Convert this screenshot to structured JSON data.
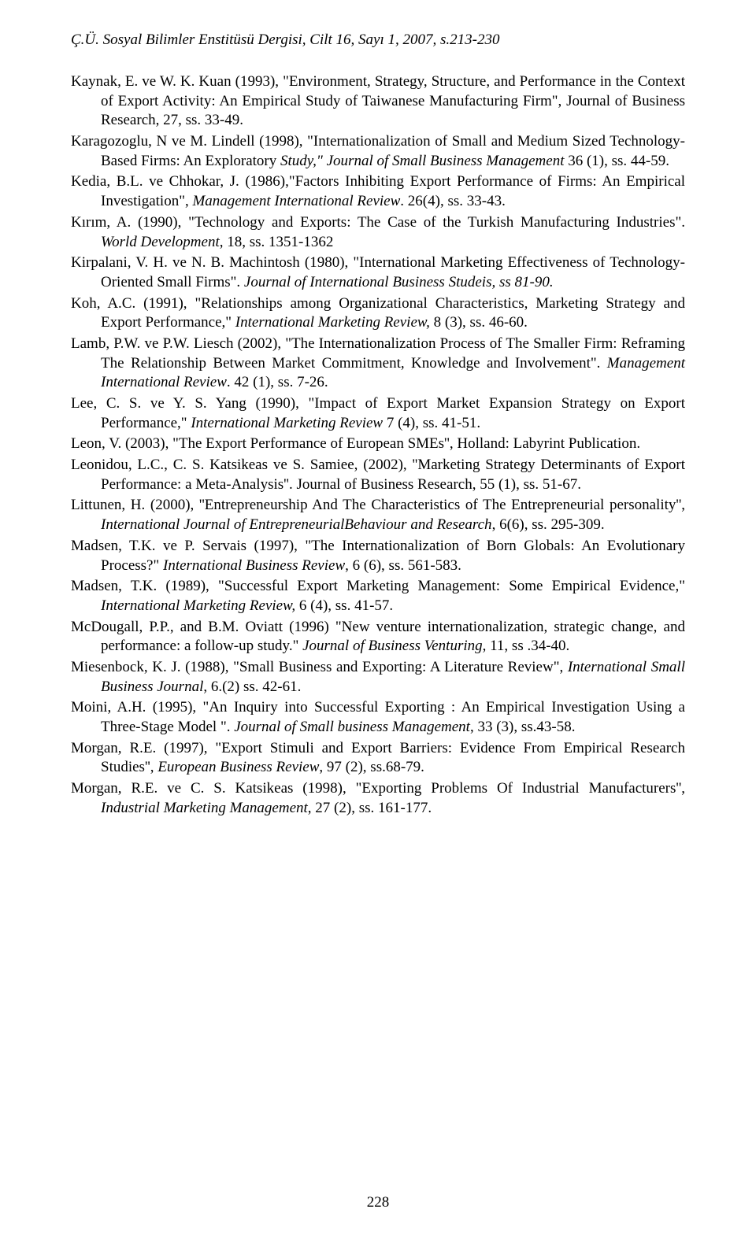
{
  "header": "Ç.Ü. Sosyal Bilimler Enstitüsü Dergisi, Cilt 16, Sayı 1, 2007, s.213-230",
  "references": [
    {
      "html": "Kaynak, E. ve W. K. Kuan (1993), \"Environment, Strategy, Structure, and Performance in the Context of Export Activity: An Empirical Study of Taiwanese Manufacturing Firm\", Journal of Business Research, 27, ss. 33-49."
    },
    {
      "html": "Karagozoglu, N ve M. Lindell (1998), \"Internationalization of Small and Medium Sized Technology-Based Firms: An Exploratory <em>Study,\" Journal of Small Business Management</em> 36 (1), ss. 44-59."
    },
    {
      "html": "Kedia, B.L. ve Chhokar, J. (1986),\"Factors Inhibiting Export Performance of Firms: An Empirical Investigation\", <em>Management International Review</em>. 26(4), ss. 33-43."
    },
    {
      "html": "Kırım, A. (1990), \"Technology and Exports: The Case of the Turkish Manufacturing Industries\". <em>World Development</em>, 18, ss. 1351-1362"
    },
    {
      "html": "Kirpalani, V. H. ve N. B. Machintosh (1980), \"International Marketing Effectiveness of Technology-Oriented Small Firms\". <em>Journal of International Business Studeis, ss 81-90.</em>"
    },
    {
      "html": "Koh, A.C. (1991), \"Relationships among Organizational Characteristics, Marketing Strategy and Export Performance,\" <em>International Marketing Review,</em> 8 (3), ss. 46-60."
    },
    {
      "html": "Lamb, P.W. ve P.W. Liesch (2002), \"The Internationalization Process of The Smaller Firm: Reframing The Relationship Between Market Commitment, Knowledge and Involvement\". <em>Management International Review</em>. 42 (1), ss. 7-26."
    },
    {
      "html": "Lee, C. S. ve Y. S. Yang (1990), \"Impact of Export Market Expansion Strategy on Export Performance,\" <em>International Marketing Review</em> 7 (4), ss. 41-51."
    },
    {
      "html": "Leon, V. (2003), \"The Export Performance of European SMEs'', Holland: Labyrint Publication."
    },
    {
      "html": "Leonidou, L.C., C. S. Katsikeas ve S. Samiee, (2002), ''Marketing Strategy Determinants of Export Performance: a Meta-Analysis''. Journal of Business Research, 55 (1), ss. 51-67."
    },
    {
      "html": "Littunen, H. (2000), ''Entrepreneurship And The Characteristics of The Entrepreneurial personality'', <em>International Journal of EntrepreneurialBehaviour and Research</em>, 6(6), ss. 295-309."
    },
    {
      "html": "Madsen, T.K. ve P. Servais (1997), \"The Internationalization of Born Globals: An Evolutionary Process?\" <em>International Business Review</em>, 6 (6), ss.  561-583."
    },
    {
      "html": "Madsen, T.K. (1989), \"Successful Export Marketing Management: Some Empirical Evidence,\" <em>International Marketing Review,</em> 6 (4), ss. 41-57."
    },
    {
      "html": "McDougall, P.P., and B.M. Oviatt (1996) \"New venture internationalization, strategic change, and performance: a follow-up study.\" <em>Journal of Business Venturing</em>, 11, ss .34-40."
    },
    {
      "html": "Miesenbock, K. J. (1988), \"Small Business and Exporting: A Literature Review\", <em>International Small Business Journal</em>, 6.(2)  ss. 42-61."
    },
    {
      "html": "Moini, A.H. (1995), \"An Inquiry into Successful Exporting : An Empirical Investigation Using a Three-Stage Model \". <em>Journal of Small business Management</em>, 33 (3), ss.43-58."
    },
    {
      "html": "Morgan, R.E. (1997), \"Export Stimuli and Export Barriers: Evidence From Empirical Research Studies'', <em>European Business Review</em>, 97 (2), ss.68-79."
    },
    {
      "html": "Morgan, R.E. ve C. S. Katsikeas (1998), \"Exporting Problems Of Industrial Manufacturers'', <em>Industrial Marketing Management</em>, 27 (2), ss. 161-177."
    }
  ],
  "pageNumber": "228"
}
